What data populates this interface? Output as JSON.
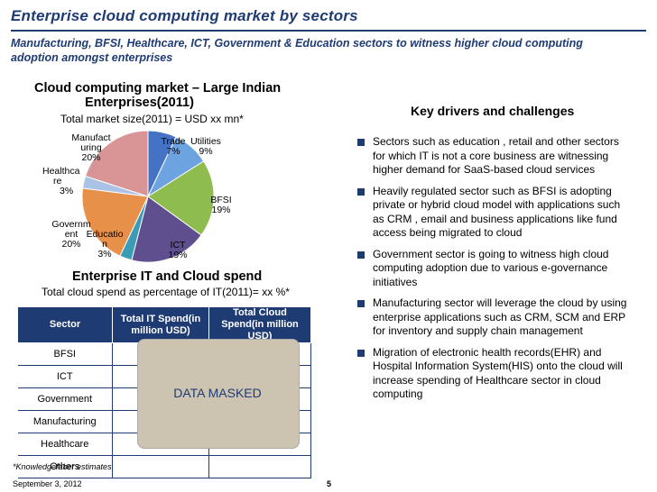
{
  "header": {
    "title": "Enterprise cloud computing market by sectors",
    "subtitle": "Manufacturing, BFSI, Healthcare, ICT, Government & Education sectors to witness higher cloud computing adoption amongst enterprises"
  },
  "pie_section": {
    "title_line1": "Cloud computing market – Large Indian",
    "title_line2": "Enterprises(2011)",
    "subtitle": "Total market size(2011) = USD xx mn*"
  },
  "chart_data": {
    "type": "pie",
    "title": "Cloud computing market – Large Indian Enterprises(2011)",
    "categories": [
      "Trade",
      "Utilities",
      "BFSI",
      "ICT",
      "Education",
      "Government",
      "Healthcare",
      "Manufacturing"
    ],
    "values": [
      7,
      9,
      19,
      19,
      3,
      20,
      3,
      20
    ],
    "colors": [
      "#4472c4",
      "#6ea3e2",
      "#8fbc4f",
      "#5f4f8f",
      "#3a9cb5",
      "#e6904a",
      "#a9c2e6",
      "#d99595"
    ],
    "labels": {
      "trade": [
        "Trade",
        "7%"
      ],
      "utilities": [
        "Utilities",
        "9%"
      ],
      "bfsi": [
        "BFSI",
        "19%"
      ],
      "ict": [
        "ICT",
        "19%"
      ],
      "education": [
        "Educatio",
        "n",
        "3%"
      ],
      "government": [
        "Governm",
        "ent",
        "20%"
      ],
      "healthcare": [
        "Healthca",
        "re",
        "3%"
      ],
      "manufacturing": [
        "Manufact",
        "uring",
        "20%"
      ]
    }
  },
  "spend": {
    "title": "Enterprise IT and Cloud spend",
    "subtitle": "Total cloud spend as percentage of IT(2011)= xx %*",
    "headers": [
      "Sector",
      "Total IT Spend(in million USD)",
      "Total Cloud Spend(in million USD)"
    ],
    "rows": [
      "BFSI",
      "ICT",
      "Government",
      "Manufacturing",
      "Healthcare",
      "Others"
    ],
    "mask_text": "DATA MASKED"
  },
  "drivers": {
    "title": "Key drivers and challenges",
    "items": [
      "Sectors such as education , retail and other sectors for which IT is not a core business are witnessing higher demand for SaaS-based cloud services",
      "Heavily regulated sector such as BFSI is adopting private or hybrid cloud model with applications such as CRM , email and business applications like fund access being migrated to cloud",
      "Government sector is going to witness high cloud computing adoption due to various e-governance initiatives",
      "Manufacturing sector will leverage the cloud by using enterprise applications such as CRM, SCM and ERP for inventory and supply chain management",
      "Migration of  electronic health records(EHR) and Hospital Information System(HIS) onto the cloud will increase spending of Healthcare sector in cloud computing"
    ]
  },
  "footer": {
    "note": "*Knowledgefaber estimates",
    "date": "September 3, 2012",
    "page": "5"
  }
}
